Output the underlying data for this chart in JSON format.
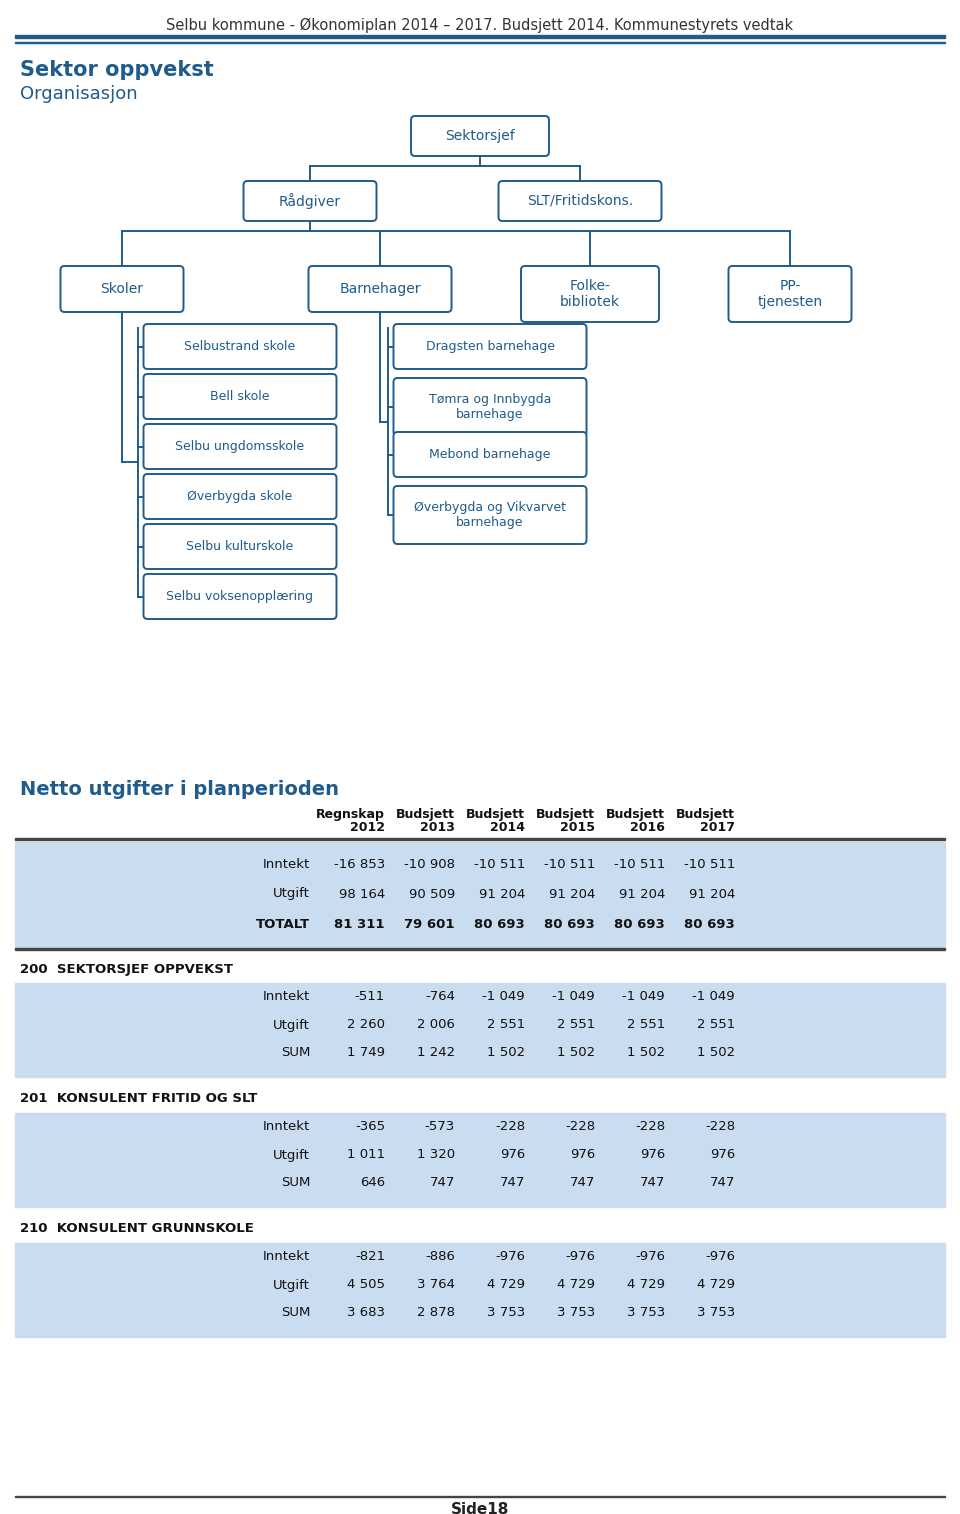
{
  "header_title": "Selbu kommune - Økonomiplan 2014 – 2017. Budsjett 2014. Kommunestyrets vedtak",
  "section_title": "Sektor oppvekst",
  "section_subtitle": "Organisasjon",
  "table_title": "Netto utgifter i planperioden",
  "header_color": "#1F5C8B",
  "box_border_color": "#1F5C8B",
  "box_fill": "#FFFFFF",
  "box_text_color": "#1F5C8B",
  "light_blue_bg": "#C9DCF0",
  "col_headers_line1": [
    "Regnskap",
    "Budsjett",
    "Budsjett",
    "Budsjett",
    "Budsjett",
    "Budsjett"
  ],
  "col_headers_line2": [
    "2012",
    "2013",
    "2014",
    "2015",
    "2016",
    "2017"
  ],
  "totalt_row": {
    "label": "TOTALT",
    "values": [
      "81 311",
      "79 601",
      "80 693",
      "80 693",
      "80 693",
      "80 693"
    ]
  },
  "main_rows": [
    {
      "label": "Inntekt",
      "values": [
        "-16 853",
        "-10 908",
        "-10 511",
        "-10 511",
        "-10 511",
        "-10 511"
      ]
    },
    {
      "label": "Utgift",
      "values": [
        "98 164",
        "90 509",
        "91 204",
        "91 204",
        "91 204",
        "91 204"
      ]
    }
  ],
  "sections": [
    {
      "code": "200",
      "name": "SEKTORSJEF OPPVEKST",
      "rows": [
        {
          "label": "Inntekt",
          "values": [
            "-511",
            "-764",
            "-1 049",
            "-1 049",
            "-1 049",
            "-1 049"
          ]
        },
        {
          "label": "Utgift",
          "values": [
            "2 260",
            "2 006",
            "2 551",
            "2 551",
            "2 551",
            "2 551"
          ]
        },
        {
          "label": "SUM",
          "values": [
            "1 749",
            "1 242",
            "1 502",
            "1 502",
            "1 502",
            "1 502"
          ]
        }
      ]
    },
    {
      "code": "201",
      "name": "KONSULENT FRITID OG SLT",
      "rows": [
        {
          "label": "Inntekt",
          "values": [
            "-365",
            "-573",
            "-228",
            "-228",
            "-228",
            "-228"
          ]
        },
        {
          "label": "Utgift",
          "values": [
            "1 011",
            "1 320",
            "976",
            "976",
            "976",
            "976"
          ]
        },
        {
          "label": "SUM",
          "values": [
            "646",
            "747",
            "747",
            "747",
            "747",
            "747"
          ]
        }
      ]
    },
    {
      "code": "210",
      "name": "KONSULENT GRUNNSKOLE",
      "rows": [
        {
          "label": "Inntekt",
          "values": [
            "-821",
            "-886",
            "-976",
            "-976",
            "-976",
            "-976"
          ]
        },
        {
          "label": "Utgift",
          "values": [
            "4 505",
            "3 764",
            "4 729",
            "4 729",
            "4 729",
            "4 729"
          ]
        },
        {
          "label": "SUM",
          "values": [
            "3 683",
            "2 878",
            "3 753",
            "3 753",
            "3 753",
            "3 753"
          ]
        }
      ]
    }
  ],
  "footer_text": "Side18"
}
